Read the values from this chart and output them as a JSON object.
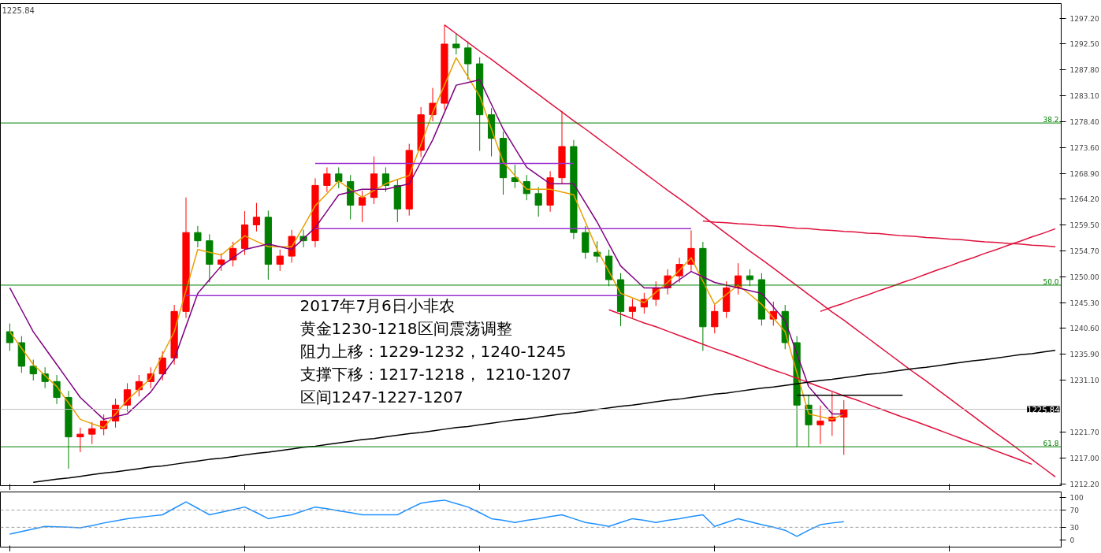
{
  "chart_data": [
    {
      "type": "candlestick",
      "categories": [
        null,
        null,
        null,
        null,
        null,
        null,
        null,
        null,
        null,
        null,
        null,
        null,
        null,
        null,
        null,
        null,
        null,
        null,
        null,
        null,
        null,
        null,
        null,
        null,
        null,
        null,
        null,
        null,
        null,
        null,
        null,
        null,
        null,
        null,
        null,
        null,
        null,
        null,
        null,
        null,
        null,
        null,
        null,
        null,
        null,
        null,
        null,
        null,
        null,
        null,
        null,
        null,
        null,
        null,
        null,
        null,
        null,
        null,
        null,
        null,
        null,
        null,
        null,
        null,
        null,
        null,
        null,
        null,
        null,
        null,
        null,
        null,
        null,
        null,
        null,
        null,
        null,
        null,
        null,
        null,
        null,
        null,
        null,
        null,
        null,
        null,
        null,
        null,
        null,
        null
      ],
      "ohlc": [
        [
          1240.0,
          1241.5,
          1236.5,
          1238.0
        ],
        [
          1238.0,
          1239.2,
          1232.5,
          1233.7
        ],
        [
          1233.7,
          1234.9,
          1231.1,
          1232.3
        ],
        [
          1232.3,
          1233.5,
          1229.7,
          1230.9
        ],
        [
          1230.9,
          1232.1,
          1226.8,
          1228.0
        ],
        [
          1228.0,
          1229.2,
          1215.0,
          1220.8
        ],
        [
          1220.8,
          1222.5,
          1218.0,
          1221.3
        ],
        [
          1221.3,
          1223.5,
          1219.5,
          1222.3
        ],
        [
          1222.3,
          1224.9,
          1221.1,
          1223.7
        ],
        [
          1223.7,
          1227.8,
          1222.5,
          1226.6
        ],
        [
          1226.6,
          1230.6,
          1225.4,
          1229.4
        ],
        [
          1229.4,
          1232.1,
          1228.2,
          1230.9
        ],
        [
          1230.9,
          1233.5,
          1229.7,
          1232.3
        ],
        [
          1232.3,
          1236.4,
          1231.1,
          1235.2
        ],
        [
          1235.2,
          1244.9,
          1234.0,
          1243.7
        ],
        [
          1243.7,
          1264.5,
          1242.5,
          1258.1
        ],
        [
          1258.1,
          1259.3,
          1255.4,
          1256.6
        ],
        [
          1256.6,
          1257.8,
          1249.0,
          1252.3
        ],
        [
          1252.3,
          1254.3,
          1251.1,
          1253.1
        ],
        [
          1253.1,
          1256.4,
          1251.9,
          1255.2
        ],
        [
          1255.2,
          1262.0,
          1254.0,
          1259.5
        ],
        [
          1259.5,
          1263.5,
          1258.3,
          1260.9
        ],
        [
          1260.9,
          1262.1,
          1249.5,
          1252.3
        ],
        [
          1252.3,
          1255.0,
          1251.1,
          1253.8
        ],
        [
          1253.8,
          1258.6,
          1252.6,
          1257.4
        ],
        [
          1257.4,
          1258.6,
          1255.4,
          1256.6
        ],
        [
          1256.6,
          1268.0,
          1255.4,
          1266.7
        ],
        [
          1266.7,
          1270.0,
          1265.5,
          1268.8
        ],
        [
          1268.8,
          1270.0,
          1266.2,
          1267.4
        ],
        [
          1267.4,
          1268.6,
          1260.5,
          1263.1
        ],
        [
          1263.1,
          1265.7,
          1260.0,
          1264.5
        ],
        [
          1264.5,
          1272.0,
          1263.3,
          1268.8
        ],
        [
          1268.8,
          1270.0,
          1265.5,
          1266.7
        ],
        [
          1266.7,
          1267.9,
          1260.0,
          1262.4
        ],
        [
          1262.4,
          1274.3,
          1261.2,
          1273.1
        ],
        [
          1273.1,
          1281.0,
          1271.9,
          1279.6
        ],
        [
          1279.6,
          1284.5,
          1278.4,
          1281.7
        ],
        [
          1281.7,
          1296.0,
          1280.5,
          1292.5
        ],
        [
          1292.5,
          1294.5,
          1290.6,
          1291.8
        ],
        [
          1291.8,
          1293.0,
          1286.0,
          1288.9
        ],
        [
          1288.9,
          1290.1,
          1273.0,
          1279.6
        ],
        [
          1279.6,
          1280.8,
          1272.0,
          1275.3
        ],
        [
          1275.3,
          1276.5,
          1265.0,
          1268.1
        ],
        [
          1268.1,
          1270.5,
          1266.2,
          1267.4
        ],
        [
          1267.4,
          1268.6,
          1264.0,
          1265.2
        ],
        [
          1265.2,
          1266.4,
          1261.0,
          1263.1
        ],
        [
          1263.1,
          1269.3,
          1261.9,
          1268.1
        ],
        [
          1268.1,
          1280.3,
          1266.9,
          1273.8
        ],
        [
          1273.8,
          1275.0,
          1256.9,
          1258.1
        ],
        [
          1258.1,
          1259.3,
          1253.3,
          1254.5
        ],
        [
          1254.5,
          1256.5,
          1252.6,
          1253.8
        ],
        [
          1253.8,
          1255.0,
          1248.3,
          1249.5
        ],
        [
          1249.5,
          1250.7,
          1241.0,
          1243.7
        ],
        [
          1243.7,
          1246.0,
          1242.5,
          1244.5
        ],
        [
          1244.5,
          1247.1,
          1243.3,
          1245.9
        ],
        [
          1245.9,
          1249.2,
          1244.7,
          1248.0
        ],
        [
          1248.0,
          1251.4,
          1246.8,
          1250.2
        ],
        [
          1250.2,
          1253.5,
          1249.0,
          1252.3
        ],
        [
          1252.3,
          1258.5,
          1251.1,
          1255.2
        ],
        [
          1255.2,
          1256.4,
          1236.5,
          1240.9
        ],
        [
          1240.9,
          1244.9,
          1239.7,
          1243.7
        ],
        [
          1243.7,
          1249.2,
          1242.5,
          1248.0
        ],
        [
          1248.0,
          1252.5,
          1246.8,
          1250.2
        ],
        [
          1250.2,
          1251.4,
          1248.3,
          1249.5
        ],
        [
          1249.5,
          1250.7,
          1241.1,
          1242.3
        ],
        [
          1242.3,
          1245.5,
          1241.1,
          1243.7
        ],
        [
          1243.7,
          1244.9,
          1236.8,
          1238.0
        ],
        [
          1238.0,
          1239.2,
          1219.0,
          1226.6
        ],
        [
          1226.6,
          1228.5,
          1219.0,
          1223.0
        ],
        [
          1223.0,
          1226.5,
          1219.5,
          1223.7
        ],
        [
          1223.7,
          1229.0,
          1221.0,
          1224.4
        ],
        [
          1224.4,
          1227.5,
          1217.5,
          1225.84
        ],
        null,
        null,
        null,
        null,
        null,
        null,
        null,
        null,
        null,
        null,
        null,
        null,
        null,
        null,
        null,
        null,
        null,
        null
      ],
      "colors": [
        "#008000",
        "#008000",
        "#008000",
        "#008000",
        "#008000",
        "#008000",
        "#ff0000",
        "#ff0000",
        "#ff0000",
        "#ff0000",
        "#ff0000",
        "#ff0000",
        "#ff0000",
        "#ff0000",
        "#ff0000",
        "#ff0000",
        "#008000",
        "#008000",
        "#ff0000",
        "#ff0000",
        "#ff0000",
        "#ff0000",
        "#008000",
        "#ff0000",
        "#ff0000",
        "#008000",
        "#ff0000",
        "#ff0000",
        "#008000",
        "#008000",
        "#ff0000",
        "#ff0000",
        "#008000",
        "#008000",
        "#ff0000",
        "#ff0000",
        "#ff0000",
        "#ff0000",
        "#008000",
        "#008000",
        "#008000",
        "#008000",
        "#008000",
        "#008000",
        "#008000",
        "#008000",
        "#ff0000",
        "#ff0000",
        "#008000",
        "#008000",
        "#008000",
        "#008000",
        "#008000",
        "#ff0000",
        "#ff0000",
        "#ff0000",
        "#ff0000",
        "#ff0000",
        "#ff0000",
        "#008000",
        "#ff0000",
        "#ff0000",
        "#ff0000",
        "#008000",
        "#008000",
        "#ff0000",
        "#008000",
        "#008000",
        "#008000",
        "#ff0000",
        "#ff0000",
        "#ff0000",
        null,
        null,
        null,
        null,
        null,
        null,
        null,
        null,
        null,
        null,
        null,
        null,
        null,
        null,
        null,
        null,
        null,
        null
      ],
      "series": [
        {
          "type": "line",
          "color": "#e8a000",
          "values": [
            1240,
            1237,
            1234,
            1232,
            1230,
            1227,
            1224,
            1223.2,
            1222.5,
            1225,
            1227.5,
            1229.5,
            1231.5,
            1235.8,
            1240,
            1247.5,
            1255,
            1254.5,
            1254,
            1255.8,
            1257.5,
            1256.5,
            1255.5,
            1255.5,
            1255.5,
            1259.2,
            1263,
            1265.2,
            1267.5,
            1266,
            1264.5,
            1265.8,
            1267,
            1267.8,
            1268.5,
            1274.2,
            1280,
            1285,
            1290,
            1286.5,
            1283,
            1277,
            1271,
            1268.5,
            1266,
            1266,
            1266,
            1265.5,
            1265,
            1260,
            1255,
            1251,
            1247,
            1246.2,
            1245.3,
            1247.2,
            1249,
            1251.2,
            1253.5,
            1249.2,
            1245,
            1246.8,
            1248.5,
            1246.8,
            1245,
            1242.5,
            1240,
            1232.5,
            1225,
            1224.5,
            1224,
            1225,
            null,
            null,
            null,
            null,
            null,
            null,
            null,
            null,
            null,
            null,
            null,
            null,
            null,
            null,
            null,
            null,
            null,
            null
          ]
        },
        {
          "type": "line",
          "color": "#800080",
          "values": [
            1248,
            1244,
            1240,
            1237,
            1234,
            1231,
            1228,
            1226,
            1224,
            1224.5,
            1225,
            1227,
            1229,
            1232,
            1235,
            1241,
            1247,
            1249.5,
            1252,
            1253.5,
            1255,
            1255.5,
            1256,
            1255.5,
            1255,
            1257,
            1259,
            1262,
            1265,
            1265.5,
            1266,
            1266,
            1266,
            1266.5,
            1267,
            1271,
            1275,
            1280,
            1285,
            1285.5,
            1286,
            1281.5,
            1277,
            1273.5,
            1270,
            1268.5,
            1267,
            1267,
            1267,
            1263.5,
            1260,
            1256,
            1252,
            1250,
            1248,
            1248,
            1248,
            1249.5,
            1251,
            1250,
            1249,
            1248.5,
            1248,
            1247.5,
            1247,
            1244.5,
            1242,
            1236,
            1230,
            1227.5,
            1225,
            1225,
            null,
            null,
            null,
            null,
            null,
            null,
            null,
            null,
            null,
            null,
            null,
            null,
            null,
            null,
            null,
            null,
            null,
            null
          ]
        },
        {
          "type": "line",
          "color": "#e0103c",
          "values": [
            null,
            null,
            null,
            null,
            null,
            null,
            null,
            null,
            null,
            null,
            null,
            null,
            null,
            null,
            null,
            null,
            null,
            null,
            null,
            null,
            null,
            null,
            null,
            null,
            null,
            null,
            null,
            null,
            null,
            null,
            null,
            null,
            null,
            null,
            null,
            null,
            null,
            1296.0,
            1294.4,
            1292.8,
            1291.2,
            1289.7,
            1288.1,
            1286.5,
            1284.9,
            1283.3,
            1281.7,
            1280.1,
            1278.5,
            1277.0,
            1275.4,
            1273.8,
            1272.2,
            1270.6,
            1269.0,
            1267.4,
            1265.8,
            1264.3,
            1262.7,
            1261.1,
            1259.5,
            1257.9,
            1256.3,
            1254.7,
            1253.2,
            1251.6,
            1250.0,
            1248.4,
            1246.8,
            1245.2,
            1243.6,
            1242.1,
            1240.5,
            1238.9,
            1237.3,
            1235.7,
            1234.1,
            1232.5,
            1231.0,
            1229.4,
            1227.8,
            1226.2,
            1224.6,
            1223.0,
            1221.4,
            1219.9,
            1218.3,
            1216.7,
            1215.1,
            1213.5
          ]
        },
        {
          "type": "line",
          "color": "#e0103c",
          "values": [
            null,
            null,
            null,
            null,
            null,
            null,
            null,
            null,
            null,
            null,
            null,
            null,
            null,
            null,
            null,
            null,
            null,
            null,
            null,
            null,
            null,
            null,
            null,
            null,
            null,
            null,
            null,
            null,
            null,
            null,
            null,
            null,
            null,
            null,
            null,
            null,
            null,
            null,
            null,
            null,
            null,
            null,
            null,
            null,
            null,
            null,
            null,
            null,
            null,
            null,
            null,
            1244.0,
            1243.2,
            1242.4,
            1241.6,
            1240.9,
            1240.1,
            1239.3,
            1238.5,
            1237.7,
            1236.9,
            1236.2,
            1235.4,
            1234.6,
            1233.8,
            1233.0,
            1232.3,
            1231.5,
            1230.7,
            1229.9,
            1229.1,
            1228.3,
            1227.6,
            1226.8,
            1226.0,
            1225.2,
            1224.4,
            1223.7,
            1222.9,
            1222.1,
            1221.3,
            1220.5,
            1219.7,
            1219.0,
            1218.2,
            1217.4,
            1216.6,
            1215.8,
            null,
            null
          ]
        },
        {
          "type": "line",
          "color": "#e0103c",
          "values": [
            null,
            null,
            null,
            null,
            null,
            null,
            null,
            null,
            null,
            null,
            null,
            null,
            null,
            null,
            null,
            null,
            null,
            null,
            null,
            null,
            null,
            null,
            null,
            null,
            null,
            null,
            null,
            null,
            null,
            null,
            null,
            null,
            null,
            null,
            null,
            null,
            null,
            null,
            null,
            null,
            null,
            null,
            null,
            null,
            null,
            null,
            null,
            null,
            null,
            null,
            null,
            null,
            null,
            null,
            null,
            null,
            null,
            null,
            null,
            null,
            null,
            null,
            null,
            null,
            null,
            null,
            null,
            null,
            null,
            1243.7,
            1244.5,
            1245.2,
            1246.0,
            1246.7,
            1247.5,
            1248.2,
            1249.0,
            1249.7,
            1250.5,
            1251.3,
            1252.0,
            1252.8,
            1253.5,
            1254.3,
            1255.0,
            1255.8,
            1256.5,
            1257.3,
            1258.0,
            1258.8
          ]
        },
        {
          "type": "line",
          "color": "#e0103c",
          "values": [
            null,
            null,
            null,
            null,
            null,
            null,
            null,
            null,
            null,
            null,
            null,
            null,
            null,
            null,
            null,
            null,
            null,
            null,
            null,
            null,
            null,
            null,
            null,
            null,
            null,
            null,
            null,
            null,
            null,
            null,
            null,
            null,
            null,
            null,
            null,
            null,
            null,
            null,
            null,
            null,
            null,
            null,
            null,
            null,
            null,
            null,
            null,
            null,
            null,
            null,
            null,
            null,
            null,
            null,
            null,
            null,
            null,
            null,
            null,
            1260.2,
            1260.0,
            1259.9,
            1259.7,
            1259.6,
            1259.4,
            1259.3,
            1259.1,
            1258.9,
            1258.8,
            1258.6,
            1258.5,
            1258.3,
            1258.2,
            1258.0,
            1257.9,
            1257.7,
            1257.5,
            1257.4,
            1257.2,
            1257.1,
            1256.9,
            1256.8,
            1256.6,
            1256.4,
            1256.3,
            1256.1,
            1256.0,
            1255.8,
            1255.7,
            1255.5
          ]
        },
        {
          "type": "line",
          "color": "#000000",
          "values": [
            null,
            null,
            1212.5,
            1212.8,
            1213.1,
            1213.3,
            1213.6,
            1213.9,
            1214.2,
            1214.4,
            1214.7,
            1215.0,
            1215.3,
            1215.5,
            1215.8,
            1216.1,
            1216.4,
            1216.7,
            1216.9,
            1217.2,
            1217.5,
            1217.8,
            1218.0,
            1218.3,
            1218.6,
            1218.9,
            1219.1,
            1219.4,
            1219.7,
            1220.0,
            1220.3,
            1220.5,
            1220.8,
            1221.1,
            1221.4,
            1221.6,
            1221.9,
            1222.2,
            1222.5,
            1222.7,
            1223.0,
            1223.3,
            1223.6,
            1223.9,
            1224.1,
            1224.4,
            1224.7,
            1225.0,
            1225.2,
            1225.5,
            1225.8,
            1226.1,
            1226.4,
            1226.6,
            1226.9,
            1227.2,
            1227.5,
            1227.7,
            1228.0,
            1228.3,
            1228.6,
            1228.8,
            1229.1,
            1229.4,
            1229.7,
            1229.9,
            1230.2,
            1230.5,
            1230.8,
            1231.1,
            1231.3,
            1231.6,
            1231.9,
            1232.2,
            1232.4,
            1232.7,
            1233.0,
            1233.3,
            1233.5,
            1233.8,
            1234.1,
            1234.4,
            1234.7,
            1234.9,
            1235.2,
            1235.5,
            1235.8,
            1236.0,
            1236.3,
            1236.6
          ]
        },
        {
          "type": "line",
          "color": "#9b30d0",
          "values": [
            null,
            null,
            null,
            null,
            null,
            null,
            null,
            null,
            null,
            null,
            null,
            null,
            null,
            null,
            null,
            null,
            null,
            null,
            null,
            null,
            null,
            null,
            null,
            null,
            null,
            null,
            1270.7,
            1270.7,
            1270.7,
            1270.7,
            1270.7,
            1270.7,
            1270.7,
            1270.7,
            1270.7,
            1270.7,
            1270.7,
            1270.7,
            1270.7,
            1270.7,
            1270.7,
            1270.7,
            1270.7,
            1270.7,
            1270.7,
            1270.7,
            1270.7,
            1270.7,
            1270.7,
            null,
            null,
            null,
            null,
            null,
            null,
            null,
            null,
            null,
            null,
            null,
            null,
            null,
            null,
            null,
            null,
            null,
            null,
            null,
            null,
            null,
            null,
            null,
            null,
            null,
            null,
            null,
            null,
            null,
            null,
            null,
            null,
            null,
            null,
            null,
            null,
            null,
            null,
            null,
            null,
            null
          ]
        },
        {
          "type": "line",
          "color": "#9b30d0",
          "values": [
            null,
            null,
            null,
            null,
            null,
            null,
            null,
            null,
            null,
            null,
            null,
            null,
            null,
            null,
            null,
            null,
            null,
            null,
            null,
            null,
            null,
            null,
            null,
            null,
            null,
            null,
            1258.8,
            1258.8,
            1258.8,
            1258.8,
            1258.8,
            1258.8,
            1258.8,
            1258.8,
            1258.8,
            1258.8,
            1258.8,
            1258.8,
            1258.8,
            1258.8,
            1258.8,
            1258.8,
            1258.8,
            1258.8,
            1258.8,
            1258.8,
            1258.8,
            1258.8,
            1258.8,
            1258.8,
            1258.8,
            1258.8,
            1258.8,
            1258.8,
            1258.8,
            1258.8,
            1258.8,
            1258.8,
            1258.8,
            null,
            null,
            null,
            null,
            null,
            null,
            null,
            null,
            null,
            null,
            null,
            null,
            null,
            null,
            null,
            null,
            null,
            null,
            null,
            null,
            null,
            null,
            null,
            null,
            null,
            null,
            null,
            null,
            null,
            null,
            null
          ]
        },
        {
          "type": "line",
          "color": "#9b30d0",
          "values": [
            null,
            null,
            null,
            null,
            null,
            null,
            null,
            null,
            null,
            null,
            null,
            null,
            null,
            null,
            null,
            1246.6,
            1246.6,
            1246.6,
            1246.6,
            1246.6,
            1246.6,
            1246.6,
            1246.6,
            1246.6,
            1246.6,
            1246.6,
            1246.6,
            1246.6,
            1246.6,
            1246.6,
            1246.6,
            1246.6,
            1246.6,
            1246.6,
            1246.6,
            1246.6,
            1246.6,
            1246.6,
            1246.6,
            1246.6,
            1246.6,
            1246.6,
            1246.6,
            1246.6,
            1246.6,
            1246.6,
            1246.6,
            1246.6,
            1246.6,
            1246.6,
            1246.6,
            1246.6,
            1246.6,
            null,
            null,
            null,
            null,
            null,
            null,
            null,
            null,
            null,
            null,
            null,
            null,
            null,
            null,
            null,
            null,
            null,
            null,
            null,
            null,
            null,
            null,
            null,
            null,
            null,
            null,
            null,
            null,
            null,
            null,
            null,
            null,
            null,
            null,
            null,
            null,
            null
          ]
        },
        {
          "type": "line",
          "color": "#000000",
          "values": [
            null,
            null,
            null,
            null,
            null,
            null,
            null,
            null,
            null,
            null,
            null,
            null,
            null,
            null,
            null,
            null,
            null,
            null,
            null,
            null,
            null,
            null,
            null,
            null,
            null,
            null,
            null,
            null,
            null,
            null,
            null,
            null,
            null,
            null,
            null,
            null,
            null,
            null,
            null,
            null,
            null,
            null,
            null,
            null,
            null,
            null,
            null,
            null,
            null,
            null,
            null,
            null,
            null,
            null,
            null,
            null,
            null,
            null,
            null,
            null,
            null,
            null,
            null,
            null,
            null,
            null,
            null,
            1228.4,
            1228.4,
            1228.4,
            1228.4,
            1228.4,
            1228.4,
            1228.4,
            1228.4,
            1228.4,
            1228.4,
            null,
            null,
            null,
            null,
            null,
            null,
            null,
            null,
            null,
            null,
            null,
            null,
            null
          ]
        }
      ],
      "ref_lines": [
        {
          "axis": "y",
          "value": 1278.1,
          "color": "#008000"
        },
        {
          "axis": "y",
          "value": 1248.5,
          "color": "#008000"
        },
        {
          "axis": "y",
          "value": 1219.0,
          "color": "#008000"
        },
        {
          "axis": "y",
          "value": 1225.84,
          "label": "1225.84",
          "color": "#c0c0c0"
        }
      ],
      "annotations": [
        "1225.84",
        "2017年7月6日小非农",
        "黄金1230-1218区间震荡调整",
        "阻力上移：1229-1232，1240-1245",
        "支撑下移：1217-1218， 1210-1207",
        "区间1247-1227-1207",
        {
          "text": "38.2",
          "y": 1278.1
        },
        {
          "text": "50.0",
          "y": 1248.5
        },
        {
          "text": "61.8",
          "y": 1219.0
        }
      ],
      "ylim": [
        1211.9,
        1299.9
      ],
      "yticks": [
        {
          "value": 1297.2,
          "label": "1297.20"
        },
        {
          "value": 1292.5,
          "label": "1292.50"
        },
        {
          "value": 1287.8,
          "label": "1287.80"
        },
        {
          "value": 1283.1,
          "label": "1283.10"
        },
        {
          "value": 1278.4,
          "label": "1278.40"
        },
        {
          "value": 1273.6,
          "label": "1273.60"
        },
        {
          "value": 1268.9,
          "label": "1268.90"
        },
        {
          "value": 1264.2,
          "label": "1264.20"
        },
        {
          "value": 1259.5,
          "label": "1259.50"
        },
        {
          "value": 1254.7,
          "label": "1254.70"
        },
        {
          "value": 1250.0,
          "label": "1250.00"
        },
        {
          "value": 1245.3,
          "label": "1245.30"
        },
        {
          "value": 1240.6,
          "label": "1240.60"
        },
        {
          "value": 1235.9,
          "label": "1235.90"
        },
        {
          "value": 1231.1,
          "label": "1231.10"
        },
        {
          "value": 1221.7,
          "label": "1221.70"
        },
        {
          "value": 1217.0,
          "label": "1217.00"
        },
        {
          "value": 1212.2,
          "label": "1212.20"
        }
      ],
      "tick_labels": "y"
    },
    {
      "type": "line",
      "categories": [
        null,
        null,
        null,
        null,
        null,
        null,
        null,
        null,
        null,
        null,
        null,
        null,
        null,
        null,
        null,
        null,
        null,
        null,
        null,
        null,
        null,
        null,
        null,
        null,
        null,
        null,
        null,
        null,
        null,
        null,
        null,
        null,
        null,
        null,
        null,
        null,
        null,
        null,
        null,
        null,
        null,
        null,
        null,
        null,
        null,
        null,
        null,
        null,
        null,
        null,
        null,
        null,
        null,
        null,
        null,
        null,
        null,
        null,
        null,
        null,
        null,
        null,
        null,
        null,
        null,
        null,
        null,
        null,
        null,
        null,
        null,
        null,
        null,
        null,
        null,
        null,
        null,
        null,
        null,
        null,
        null,
        null,
        null,
        null,
        null,
        null,
        null,
        null,
        null,
        null
      ],
      "series": [
        {
          "color": "#1e90ff",
          "values": [
            14,
            20,
            26,
            32,
            31,
            30,
            29,
            34,
            40,
            45,
            50,
            53,
            56,
            59,
            74,
            89,
            74,
            59,
            65,
            71,
            77,
            64,
            50,
            55,
            59,
            68,
            77,
            73,
            68,
            64,
            59,
            59,
            59,
            59,
            73,
            86,
            90,
            93,
            85,
            77,
            64,
            50,
            46,
            41,
            46,
            50,
            55,
            59,
            50,
            41,
            37,
            32,
            41,
            50,
            46,
            41,
            46,
            50,
            55,
            59,
            32,
            41,
            50,
            43,
            36,
            30,
            23,
            9,
            23,
            36,
            40,
            43,
            null,
            null,
            null,
            null,
            null,
            null,
            null,
            null,
            null,
            null,
            null,
            null,
            null,
            null,
            null,
            null,
            null,
            null
          ]
        }
      ],
      "ref_lines": [
        {
          "axis": "y",
          "value": 70,
          "color": "#a0a0a0",
          "line_style": "dashed"
        },
        {
          "axis": "y",
          "value": 30,
          "color": "#a0a0a0",
          "line_style": "dashed"
        }
      ],
      "ylim": [
        -16,
        112
      ],
      "yticks": [
        0,
        30,
        70,
        100
      ],
      "tick_labels": "y"
    }
  ]
}
